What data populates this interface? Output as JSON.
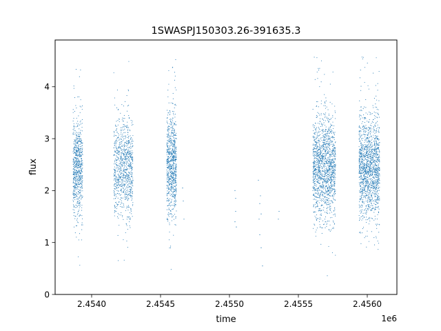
{
  "chart_data": {
    "type": "scatter",
    "title": "1SWASPJ150303.26-391635.3",
    "xlabel": "time",
    "ylabel": "flux",
    "x_offset_label": "1e6",
    "xlim": [
      2453735,
      2456215
    ],
    "ylim": [
      0,
      4.9
    ],
    "x_ticks": [
      2454000,
      2454500,
      2455000,
      2455500,
      2456000
    ],
    "x_tick_labels": [
      "2.4540",
      "2.4545",
      "2.4550",
      "2.4555",
      "2.4560"
    ],
    "y_ticks": [
      0,
      1,
      2,
      3,
      4
    ],
    "y_tick_labels": [
      "0",
      "1",
      "2",
      "3",
      "4"
    ],
    "grid": false,
    "marker_color": "#1f77b4",
    "clusters": [
      {
        "x_range": [
          2453865,
          2453935
        ],
        "center": 2.45,
        "spread": 0.45,
        "min": 0.2,
        "max": 4.6,
        "count": 700
      },
      {
        "x_range": [
          2454160,
          2454300
        ],
        "center": 2.45,
        "spread": 0.48,
        "min": 0.25,
        "max": 4.7,
        "count": 900
      },
      {
        "x_range": [
          2454545,
          2454615
        ],
        "center": 2.5,
        "spread": 0.5,
        "min": 0.2,
        "max": 4.7,
        "count": 800
      },
      {
        "x_range": [
          2455605,
          2455770
        ],
        "center": 2.45,
        "spread": 0.48,
        "min": 0.3,
        "max": 4.65,
        "count": 1500
      },
      {
        "x_range": [
          2455940,
          2456090
        ],
        "center": 2.45,
        "spread": 0.5,
        "min": 0.3,
        "max": 4.65,
        "count": 1500
      }
    ],
    "sparse_points": [
      {
        "x": 2454660,
        "y": 2.05
      },
      {
        "x": 2454665,
        "y": 1.8
      },
      {
        "x": 2454670,
        "y": 1.45
      },
      {
        "x": 2455040,
        "y": 2.0
      },
      {
        "x": 2455045,
        "y": 1.85
      },
      {
        "x": 2455045,
        "y": 1.6
      },
      {
        "x": 2455040,
        "y": 1.4
      },
      {
        "x": 2455050,
        "y": 1.3
      },
      {
        "x": 2455210,
        "y": 2.2
      },
      {
        "x": 2455225,
        "y": 1.9
      },
      {
        "x": 2455220,
        "y": 1.75
      },
      {
        "x": 2455230,
        "y": 1.55
      },
      {
        "x": 2455215,
        "y": 1.45
      },
      {
        "x": 2455220,
        "y": 1.15
      },
      {
        "x": 2455230,
        "y": 0.9
      },
      {
        "x": 2455240,
        "y": 0.55
      },
      {
        "x": 2455360,
        "y": 1.6
      },
      {
        "x": 2455355,
        "y": 1.45
      }
    ]
  }
}
